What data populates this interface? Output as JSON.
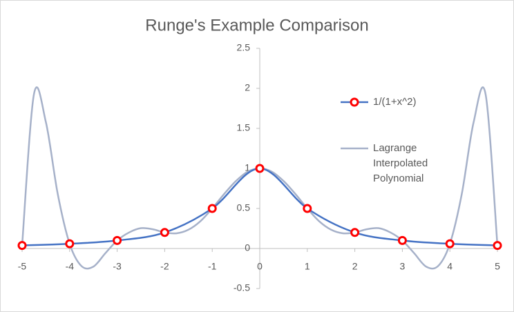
{
  "chart_data": {
    "type": "line",
    "title": "Runge's Example Comparison",
    "series": [
      {
        "name": "1/(1+x^2)",
        "color": "#4472c4",
        "marker_color": "#ff0000",
        "smooth": true,
        "x": [
          -5,
          -4,
          -3,
          -2,
          -1,
          0,
          1,
          2,
          3,
          4,
          5
        ],
        "values": [
          0.038,
          0.059,
          0.1,
          0.2,
          0.5,
          1,
          0.5,
          0.2,
          0.1,
          0.059,
          0.038
        ]
      },
      {
        "name": "Lagrange Interpolated Polynomial",
        "color": "#a6b1c9",
        "smooth": true,
        "x": [
          -5,
          -4.75,
          -4.5,
          -4.25,
          -4,
          -3.75,
          -3.5,
          -3.25,
          -3,
          -2.75,
          -2.5,
          -2.25,
          -2,
          -1.75,
          -1.5,
          -1.25,
          -1,
          -0.75,
          -0.5,
          -0.25,
          0,
          0.25,
          0.5,
          0.75,
          1,
          1.25,
          1.5,
          1.75,
          2,
          2.25,
          2.5,
          2.75,
          3,
          3.25,
          3.5,
          3.75,
          4,
          4.25,
          4.5,
          4.75,
          5
        ],
        "values": [
          0.038,
          1.93,
          1.579,
          0.68,
          0.059,
          -0.22,
          -0.226,
          -0.06,
          0.1,
          0.2,
          0.254,
          0.24,
          0.2,
          0.19,
          0.235,
          0.34,
          0.5,
          0.68,
          0.843,
          0.96,
          1,
          0.96,
          0.843,
          0.68,
          0.5,
          0.34,
          0.235,
          0.19,
          0.2,
          0.24,
          0.254,
          0.2,
          0.1,
          -0.06,
          -0.226,
          -0.22,
          0.059,
          0.68,
          1.579,
          1.93,
          0.038
        ]
      }
    ],
    "xlim": [
      -5,
      5
    ],
    "xticks": [
      -5,
      -4,
      -3,
      -2,
      -1,
      0,
      1,
      2,
      3,
      4,
      5
    ],
    "ylim": [
      -0.5,
      2.5
    ],
    "yticks": [
      -0.5,
      0,
      0.5,
      1,
      1.5,
      2,
      2.5
    ],
    "grid": false,
    "legend": "right"
  }
}
